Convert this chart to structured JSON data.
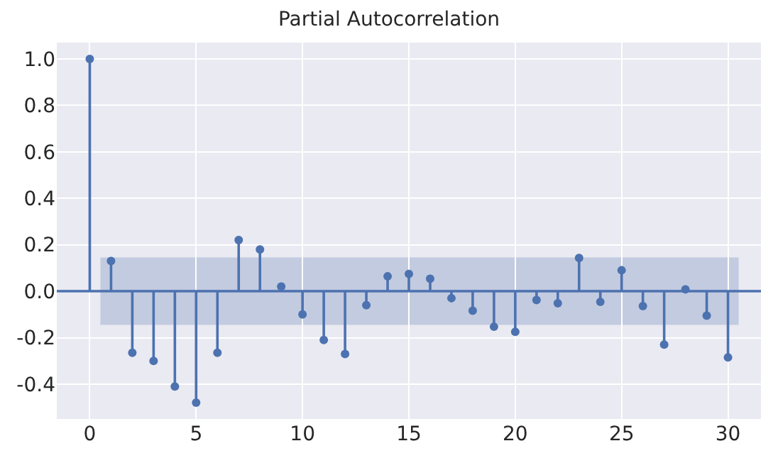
{
  "chart_data": {
    "type": "lollipop",
    "title": "Partial Autocorrelation",
    "x": [
      0,
      1,
      2,
      3,
      4,
      5,
      6,
      7,
      8,
      9,
      10,
      11,
      12,
      13,
      14,
      15,
      16,
      17,
      18,
      19,
      20,
      21,
      22,
      23,
      24,
      25,
      26,
      27,
      28,
      29,
      30
    ],
    "series": [
      {
        "color": "#4c72b0",
        "values": [
          1.0,
          0.13,
          -0.265,
          -0.3,
          -0.41,
          -0.48,
          -0.265,
          0.22,
          0.18,
          0.02,
          -0.1,
          -0.21,
          -0.27,
          -0.06,
          0.064,
          0.074,
          0.054,
          -0.03,
          -0.084,
          -0.153,
          -0.175,
          -0.038,
          -0.052,
          0.143,
          -0.046,
          0.09,
          -0.064,
          -0.23,
          0.008,
          -0.105,
          -0.285
        ]
      }
    ],
    "ref_lines": [
      {
        "axis": "y",
        "value": 0,
        "color": "#4c72b0"
      }
    ],
    "bands": [
      {
        "axis": "y",
        "from": -0.145,
        "to": 0.145,
        "color": "#c3cbe0"
      }
    ],
    "xlim": [
      -1.55,
      31.55
    ],
    "xticks": [
      0,
      5,
      10,
      15,
      20,
      25,
      30
    ],
    "ylim": [
      -0.55,
      1.07
    ],
    "yticks": [
      {
        "value": -0.4,
        "label": "-0.4"
      },
      {
        "value": -0.2,
        "label": "-0.2"
      },
      {
        "value": 0.0,
        "label": "0.0"
      },
      {
        "value": 0.2,
        "label": "0.2"
      },
      {
        "value": 0.4,
        "label": "0.4"
      },
      {
        "value": 0.6,
        "label": "0.6"
      },
      {
        "value": 0.8,
        "label": "0.8"
      },
      {
        "value": 1.0,
        "label": "1.0"
      }
    ],
    "grid": true,
    "marker": "circle"
  }
}
